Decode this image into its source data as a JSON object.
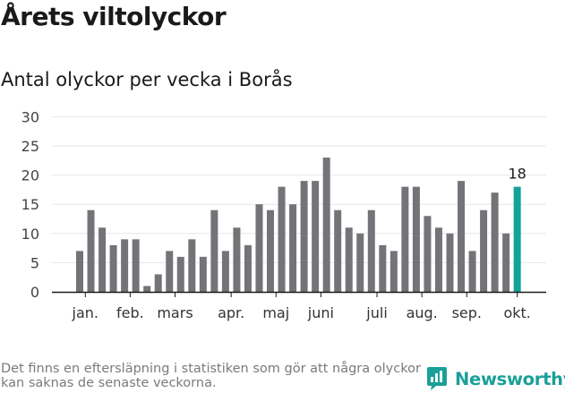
{
  "header": {
    "title": "Årets viltolyckor",
    "subtitle": "Antal olyckor per vecka i Borås"
  },
  "footer": {
    "note": "Det finns en eftersläpning i statistiken som gör att några olyckor kan saknas de senaste veckorna.",
    "brand": "Newsworthy"
  },
  "colors": {
    "bar": "#747378",
    "highlight": "#12a39a",
    "grid": "#e6e6e6",
    "brand": "#1a9f99"
  },
  "chart_data": {
    "type": "bar",
    "values": [
      7,
      14,
      11,
      8,
      9,
      9,
      1,
      3,
      7,
      6,
      9,
      6,
      14,
      7,
      11,
      8,
      15,
      14,
      18,
      15,
      19,
      19,
      23,
      14,
      11,
      10,
      14,
      8,
      7,
      18,
      18,
      13,
      11,
      10,
      19,
      7,
      14,
      17,
      10,
      18
    ],
    "highlight_index": 39,
    "highlight_label": "18",
    "yticks": [
      "0",
      "5",
      "10",
      "15",
      "20",
      "25",
      "30"
    ],
    "ylim": [
      0,
      30
    ],
    "month_labels": [
      {
        "label": "jan.",
        "at": 0.5
      },
      {
        "label": "feb.",
        "at": 4.5
      },
      {
        "label": "mars",
        "at": 8.5
      },
      {
        "label": "apr.",
        "at": 13.5
      },
      {
        "label": "maj",
        "at": 17.5
      },
      {
        "label": "juni",
        "at": 21.5
      },
      {
        "label": "juli",
        "at": 26.5
      },
      {
        "label": "aug.",
        "at": 30.5
      },
      {
        "label": "sep.",
        "at": 34.5
      },
      {
        "label": "okt.",
        "at": 39
      }
    ],
    "grid": true
  }
}
